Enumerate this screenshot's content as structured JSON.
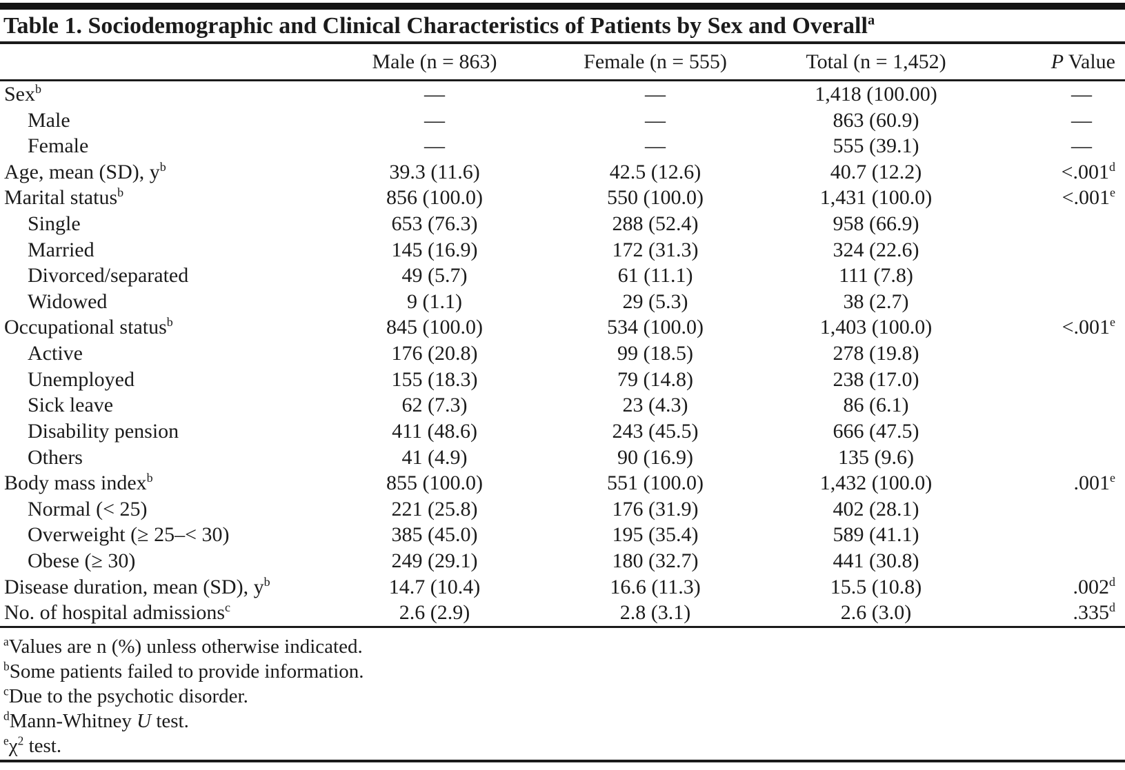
{
  "title": {
    "text": "Table 1. Sociodemographic and Clinical Characteristics of Patients by Sex and Overall",
    "sup": "a"
  },
  "header": {
    "characteristic": "",
    "male": "Male (n = 863)",
    "female": "Female (n = 555)",
    "total": "Total (n = 1,452)",
    "p_italic": "P",
    "p_rest": "Value"
  },
  "rows": [
    {
      "label": "Sex",
      "sup": "b",
      "indent": 0,
      "male": "—",
      "female": "—",
      "total": "1,418 (100.00)",
      "p": "—"
    },
    {
      "label": "Male",
      "indent": 1,
      "male": "—",
      "female": "—",
      "total": "863 (60.9)",
      "p": "—"
    },
    {
      "label": "Female",
      "indent": 1,
      "male": "—",
      "female": "—",
      "total": "555 (39.1)",
      "p": "—"
    },
    {
      "label": "Age, mean (SD), y",
      "sup": "b",
      "indent": 0,
      "male": "39.3 (11.6)",
      "female": "42.5 (12.6)",
      "total": "40.7 (12.2)",
      "p": "<.001",
      "p_sup": "d"
    },
    {
      "label": "Marital status",
      "sup": "b",
      "indent": 0,
      "male": "856 (100.0)",
      "female": "550 (100.0)",
      "total": "1,431 (100.0)",
      "p": "<.001",
      "p_sup": "e"
    },
    {
      "label": "Single",
      "indent": 1,
      "male": "653 (76.3)",
      "female": "288 (52.4)",
      "total": "958 (66.9)"
    },
    {
      "label": "Married",
      "indent": 1,
      "male": "145 (16.9)",
      "female": "172 (31.3)",
      "total": "324 (22.6)"
    },
    {
      "label": "Divorced/separated",
      "indent": 1,
      "male": "49 (5.7)",
      "female": "61 (11.1)",
      "total": "111 (7.8)"
    },
    {
      "label": "Widowed",
      "indent": 1,
      "male": "9 (1.1)",
      "female": "29 (5.3)",
      "total": "38 (2.7)"
    },
    {
      "label": "Occupational status",
      "sup": "b",
      "indent": 0,
      "male": "845 (100.0)",
      "female": "534 (100.0)",
      "total": "1,403 (100.0)",
      "p": "<.001",
      "p_sup": "e"
    },
    {
      "label": "Active",
      "indent": 1,
      "male": "176 (20.8)",
      "female": "99 (18.5)",
      "total": "278 (19.8)"
    },
    {
      "label": "Unemployed",
      "indent": 1,
      "male": "155 (18.3)",
      "female": "79 (14.8)",
      "total": "238 (17.0)"
    },
    {
      "label": "Sick leave",
      "indent": 1,
      "male": "62 (7.3)",
      "female": "23 (4.3)",
      "total": "86 (6.1)"
    },
    {
      "label": "Disability pension",
      "indent": 1,
      "male": "411 (48.6)",
      "female": "243 (45.5)",
      "total": "666 (47.5)"
    },
    {
      "label": "Others",
      "indent": 1,
      "male": "41 (4.9)",
      "female": "90 (16.9)",
      "total": "135 (9.6)"
    },
    {
      "label": "Body mass index",
      "sup": "b",
      "indent": 0,
      "male": "855 (100.0)",
      "female": "551 (100.0)",
      "total": "1,432 (100.0)",
      "p": ".001",
      "p_sup": "e"
    },
    {
      "label": "Normal (< 25)",
      "indent": 1,
      "male": "221 (25.8)",
      "female": "176 (31.9)",
      "total": "402 (28.1)"
    },
    {
      "label": "Overweight (≥ 25–< 30)",
      "indent": 1,
      "male": "385 (45.0)",
      "female": "195 (35.4)",
      "total": "589 (41.1)"
    },
    {
      "label": "Obese (≥ 30)",
      "indent": 1,
      "male": "249 (29.1)",
      "female": "180 (32.7)",
      "total": "441 (30.8)"
    },
    {
      "label": "Disease duration, mean (SD), y",
      "sup": "b",
      "indent": 0,
      "male": "14.7 (10.4)",
      "female": "16.6 (11.3)",
      "total": "15.5 (10.8)",
      "p": ".002",
      "p_sup": "d"
    },
    {
      "label": "No. of hospital admissions",
      "sup": "c",
      "indent": 0,
      "male": "2.6 (2.9)",
      "female": "2.8 (3.1)",
      "total": "2.6 (3.0)",
      "p": ".335",
      "p_sup": "d"
    }
  ],
  "footnotes": [
    {
      "sup": "a",
      "segments": [
        {
          "t": "Values are n (%) unless otherwise indicated."
        }
      ]
    },
    {
      "sup": "b",
      "segments": [
        {
          "t": "Some patients failed to provide information."
        }
      ]
    },
    {
      "sup": "c",
      "segments": [
        {
          "t": "Due to the psychotic disorder."
        }
      ]
    },
    {
      "sup": "d",
      "segments": [
        {
          "t": "Mann-Whitney "
        },
        {
          "t": "U",
          "style": "i"
        },
        {
          "t": " test."
        }
      ]
    },
    {
      "sup": "e",
      "segments": [
        {
          "t": "χ"
        },
        {
          "t": "2",
          "style": "sup"
        },
        {
          "t": " test."
        }
      ]
    }
  ],
  "colors": {
    "ink": "#1b1b1b",
    "rule": "#1a1a1a",
    "background": "#ffffff"
  }
}
